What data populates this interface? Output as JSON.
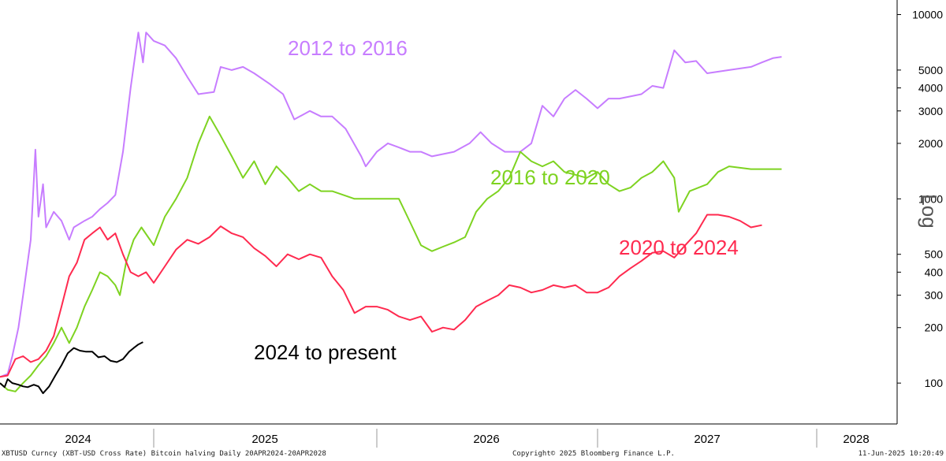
{
  "chart_data": {
    "type": "line",
    "title": "",
    "xlabel": "",
    "ylabel": "Log",
    "y_scale": "log",
    "ylim": [
      60,
      12000
    ],
    "y_ticks": [
      100,
      200,
      300,
      400,
      500,
      1000,
      2000,
      3000,
      4000,
      5000,
      10000
    ],
    "x_ticks": [
      "2024",
      "2025",
      "2026",
      "2027",
      "2028"
    ],
    "grid": false,
    "legend": "inline labels",
    "series": [
      {
        "name": "2012 to 2016",
        "color": "#c77dff",
        "points": [
          [
            2024.0,
            108
          ],
          [
            2024.05,
            112
          ],
          [
            2024.08,
            140
          ],
          [
            2024.12,
            200
          ],
          [
            2024.15,
            300
          ],
          [
            2024.2,
            600
          ],
          [
            2024.23,
            1850
          ],
          [
            2024.25,
            800
          ],
          [
            2024.28,
            1200
          ],
          [
            2024.3,
            700
          ],
          [
            2024.35,
            850
          ],
          [
            2024.4,
            760
          ],
          [
            2024.45,
            600
          ],
          [
            2024.48,
            700
          ],
          [
            2024.55,
            760
          ],
          [
            2024.6,
            800
          ],
          [
            2024.65,
            880
          ],
          [
            2024.7,
            950
          ],
          [
            2024.75,
            1050
          ],
          [
            2024.8,
            1800
          ],
          [
            2024.85,
            4000
          ],
          [
            2024.9,
            8000
          ],
          [
            2024.93,
            5500
          ],
          [
            2024.95,
            8000
          ],
          [
            2025.0,
            7200
          ],
          [
            2025.05,
            6800
          ],
          [
            2025.1,
            5800
          ],
          [
            2025.15,
            4600
          ],
          [
            2025.2,
            3700
          ],
          [
            2025.27,
            3800
          ],
          [
            2025.3,
            5200
          ],
          [
            2025.35,
            5000
          ],
          [
            2025.4,
            5200
          ],
          [
            2025.45,
            4800
          ],
          [
            2025.52,
            4200
          ],
          [
            2025.58,
            3700
          ],
          [
            2025.63,
            2700
          ],
          [
            2025.7,
            3000
          ],
          [
            2025.75,
            2800
          ],
          [
            2025.8,
            2800
          ],
          [
            2025.86,
            2400
          ],
          [
            2025.93,
            1700
          ],
          [
            2025.95,
            1500
          ],
          [
            2026.0,
            1800
          ],
          [
            2026.05,
            2000
          ],
          [
            2026.1,
            1900
          ],
          [
            2026.15,
            1800
          ],
          [
            2026.2,
            1800
          ],
          [
            2026.25,
            1700
          ],
          [
            2026.3,
            1750
          ],
          [
            2026.35,
            1800
          ],
          [
            2026.42,
            2000
          ],
          [
            2026.47,
            2300
          ],
          [
            2026.52,
            2000
          ],
          [
            2026.58,
            1800
          ],
          [
            2026.65,
            1800
          ],
          [
            2026.7,
            2000
          ],
          [
            2026.75,
            3200
          ],
          [
            2026.8,
            2800
          ],
          [
            2026.85,
            3500
          ],
          [
            2026.9,
            3900
          ],
          [
            2026.95,
            3500
          ],
          [
            2027.0,
            3100
          ],
          [
            2027.05,
            3500
          ],
          [
            2027.1,
            3500
          ],
          [
            2027.2,
            3700
          ],
          [
            2027.25,
            4100
          ],
          [
            2027.3,
            4000
          ],
          [
            2027.35,
            6400
          ],
          [
            2027.4,
            5500
          ],
          [
            2027.45,
            5600
          ],
          [
            2027.5,
            4800
          ],
          [
            2027.6,
            5000
          ],
          [
            2027.7,
            5200
          ],
          [
            2027.75,
            5500
          ],
          [
            2027.8,
            5800
          ],
          [
            2027.84,
            5900
          ]
        ]
      },
      {
        "name": "2016 to 2020",
        "color": "#7ed321",
        "points": [
          [
            2024.0,
            100
          ],
          [
            2024.05,
            92
          ],
          [
            2024.1,
            90
          ],
          [
            2024.15,
            100
          ],
          [
            2024.2,
            110
          ],
          [
            2024.25,
            125
          ],
          [
            2024.3,
            140
          ],
          [
            2024.35,
            165
          ],
          [
            2024.4,
            200
          ],
          [
            2024.45,
            165
          ],
          [
            2024.5,
            200
          ],
          [
            2024.55,
            260
          ],
          [
            2024.6,
            320
          ],
          [
            2024.65,
            400
          ],
          [
            2024.7,
            380
          ],
          [
            2024.75,
            340
          ],
          [
            2024.78,
            300
          ],
          [
            2024.82,
            450
          ],
          [
            2024.87,
            600
          ],
          [
            2024.92,
            700
          ],
          [
            2025.0,
            560
          ],
          [
            2025.05,
            800
          ],
          [
            2025.1,
            1000
          ],
          [
            2025.15,
            1300
          ],
          [
            2025.2,
            2000
          ],
          [
            2025.25,
            2800
          ],
          [
            2025.3,
            2200
          ],
          [
            2025.35,
            1700
          ],
          [
            2025.4,
            1300
          ],
          [
            2025.45,
            1600
          ],
          [
            2025.5,
            1200
          ],
          [
            2025.55,
            1500
          ],
          [
            2025.6,
            1300
          ],
          [
            2025.65,
            1100
          ],
          [
            2025.7,
            1200
          ],
          [
            2025.75,
            1100
          ],
          [
            2025.8,
            1100
          ],
          [
            2025.9,
            1000
          ],
          [
            2026.0,
            1000
          ],
          [
            2026.1,
            1000
          ],
          [
            2026.15,
            750
          ],
          [
            2026.2,
            560
          ],
          [
            2026.25,
            520
          ],
          [
            2026.3,
            550
          ],
          [
            2026.35,
            580
          ],
          [
            2026.4,
            620
          ],
          [
            2026.45,
            850
          ],
          [
            2026.5,
            1000
          ],
          [
            2026.55,
            1100
          ],
          [
            2026.6,
            1300
          ],
          [
            2026.65,
            1800
          ],
          [
            2026.7,
            1600
          ],
          [
            2026.75,
            1500
          ],
          [
            2026.8,
            1600
          ],
          [
            2026.85,
            1400
          ],
          [
            2026.9,
            1350
          ],
          [
            2026.95,
            1300
          ],
          [
            2027.0,
            1400
          ],
          [
            2027.05,
            1200
          ],
          [
            2027.1,
            1100
          ],
          [
            2027.15,
            1150
          ],
          [
            2027.2,
            1300
          ],
          [
            2027.25,
            1400
          ],
          [
            2027.3,
            1600
          ],
          [
            2027.35,
            1300
          ],
          [
            2027.37,
            850
          ],
          [
            2027.42,
            1100
          ],
          [
            2027.5,
            1200
          ],
          [
            2027.55,
            1400
          ],
          [
            2027.6,
            1500
          ],
          [
            2027.7,
            1450
          ],
          [
            2027.8,
            1450
          ],
          [
            2027.84,
            1450
          ]
        ]
      },
      {
        "name": "2020 to 2024",
        "color": "#ff2a4f",
        "points": [
          [
            2024.0,
            108
          ],
          [
            2024.05,
            110
          ],
          [
            2024.1,
            135
          ],
          [
            2024.15,
            140
          ],
          [
            2024.2,
            130
          ],
          [
            2024.25,
            135
          ],
          [
            2024.3,
            150
          ],
          [
            2024.35,
            180
          ],
          [
            2024.4,
            260
          ],
          [
            2024.45,
            380
          ],
          [
            2024.5,
            450
          ],
          [
            2024.55,
            600
          ],
          [
            2024.6,
            650
          ],
          [
            2024.65,
            700
          ],
          [
            2024.7,
            600
          ],
          [
            2024.75,
            650
          ],
          [
            2024.8,
            500
          ],
          [
            2024.85,
            400
          ],
          [
            2024.9,
            380
          ],
          [
            2024.95,
            400
          ],
          [
            2025.0,
            350
          ],
          [
            2025.05,
            430
          ],
          [
            2025.1,
            530
          ],
          [
            2025.15,
            600
          ],
          [
            2025.2,
            570
          ],
          [
            2025.25,
            620
          ],
          [
            2025.3,
            710
          ],
          [
            2025.35,
            650
          ],
          [
            2025.4,
            620
          ],
          [
            2025.45,
            540
          ],
          [
            2025.5,
            490
          ],
          [
            2025.55,
            430
          ],
          [
            2025.6,
            500
          ],
          [
            2025.65,
            470
          ],
          [
            2025.7,
            500
          ],
          [
            2025.75,
            480
          ],
          [
            2025.8,
            380
          ],
          [
            2025.85,
            320
          ],
          [
            2025.9,
            240
          ],
          [
            2025.95,
            260
          ],
          [
            2026.0,
            260
          ],
          [
            2026.05,
            250
          ],
          [
            2026.1,
            230
          ],
          [
            2026.15,
            220
          ],
          [
            2026.2,
            230
          ],
          [
            2026.25,
            190
          ],
          [
            2026.3,
            200
          ],
          [
            2026.35,
            195
          ],
          [
            2026.4,
            220
          ],
          [
            2026.45,
            260
          ],
          [
            2026.5,
            280
          ],
          [
            2026.55,
            300
          ],
          [
            2026.6,
            340
          ],
          [
            2026.65,
            330
          ],
          [
            2026.7,
            310
          ],
          [
            2026.75,
            320
          ],
          [
            2026.8,
            340
          ],
          [
            2026.85,
            330
          ],
          [
            2026.9,
            340
          ],
          [
            2026.95,
            310
          ],
          [
            2027.0,
            310
          ],
          [
            2027.05,
            330
          ],
          [
            2027.1,
            380
          ],
          [
            2027.15,
            420
          ],
          [
            2027.2,
            460
          ],
          [
            2027.25,
            510
          ],
          [
            2027.3,
            520
          ],
          [
            2027.35,
            480
          ],
          [
            2027.4,
            560
          ],
          [
            2027.45,
            650
          ],
          [
            2027.5,
            820
          ],
          [
            2027.55,
            820
          ],
          [
            2027.6,
            800
          ],
          [
            2027.65,
            760
          ],
          [
            2027.7,
            700
          ],
          [
            2027.75,
            720
          ]
        ]
      },
      {
        "name": "2024 to present",
        "color": "#000000",
        "points": [
          [
            2024.0,
            100
          ],
          [
            2024.03,
            95
          ],
          [
            2024.05,
            105
          ],
          [
            2024.08,
            100
          ],
          [
            2024.12,
            98
          ],
          [
            2024.15,
            96
          ],
          [
            2024.18,
            95
          ],
          [
            2024.22,
            98
          ],
          [
            2024.25,
            96
          ],
          [
            2024.28,
            88
          ],
          [
            2024.32,
            96
          ],
          [
            2024.36,
            110
          ],
          [
            2024.4,
            125
          ],
          [
            2024.44,
            145
          ],
          [
            2024.48,
            155
          ],
          [
            2024.52,
            150
          ],
          [
            2024.56,
            148
          ],
          [
            2024.6,
            148
          ],
          [
            2024.64,
            138
          ],
          [
            2024.68,
            140
          ],
          [
            2024.72,
            132
          ],
          [
            2024.76,
            130
          ],
          [
            2024.8,
            135
          ],
          [
            2024.84,
            148
          ],
          [
            2024.87,
            155
          ],
          [
            2024.9,
            162
          ],
          [
            2024.93,
            167
          ]
        ]
      }
    ]
  },
  "labels": {
    "s1": "2012 to 2016",
    "s2": "2016 to 2020",
    "s3": "2020 to 2024",
    "s4": "2024 to present",
    "log": "Log"
  },
  "footer": {
    "left": "XBTUSD Curncy (XBT-USD Cross Rate) Bitcoin halving  Daily 20APR2024-20APR2028",
    "center": "Copyright© 2025 Bloomberg Finance L.P.",
    "right": "11-Jun-2025 10:20:49"
  }
}
